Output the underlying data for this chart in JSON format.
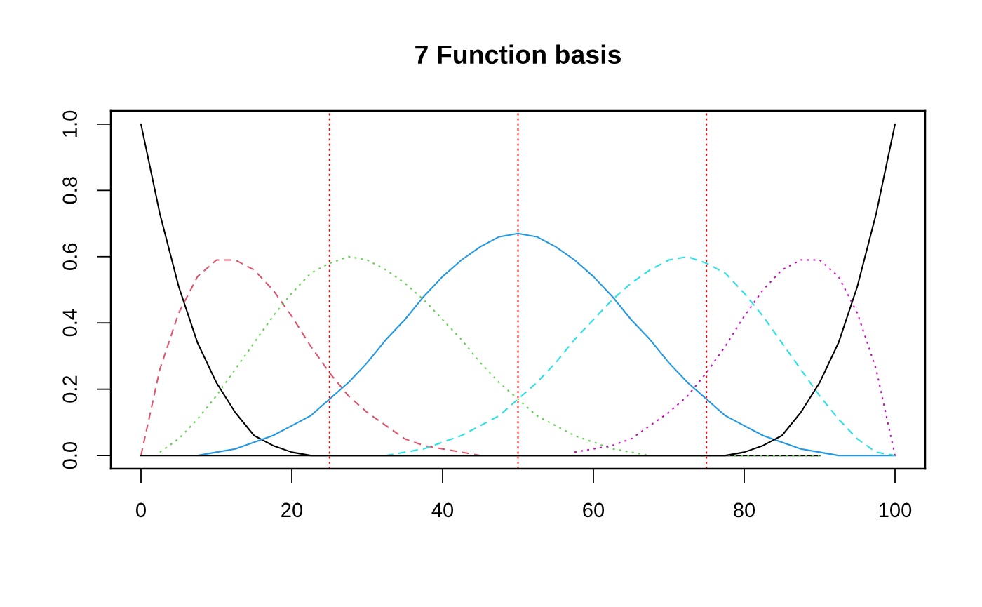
{
  "chart_data": {
    "type": "line",
    "title": "7 Function basis",
    "x": [
      0,
      2.5,
      5,
      7.5,
      10,
      12.5,
      15,
      17.5,
      20,
      22.5,
      25,
      27.5,
      30,
      32.5,
      35,
      37.5,
      40,
      42.5,
      45,
      47.5,
      50,
      52.5,
      55,
      57.5,
      60,
      62.5,
      65,
      67.5,
      70,
      72.5,
      75,
      77.5,
      80,
      82.5,
      85,
      87.5,
      90,
      92.5,
      95,
      97.5,
      100
    ],
    "series": [
      {
        "color": "#000000",
        "line_style": "solid",
        "values": [
          1,
          0.73,
          0.51,
          0.34,
          0.22,
          0.13,
          0.06,
          0.03,
          0.01,
          0,
          0,
          0,
          0,
          0,
          0,
          0,
          0,
          0,
          0,
          0,
          0,
          0,
          0,
          0,
          0,
          0,
          0,
          0,
          0,
          0,
          0,
          0,
          0,
          0,
          0,
          0,
          0,
          null,
          null,
          null,
          null
        ]
      },
      {
        "color": "#DF536B",
        "line_style": "dashed",
        "values": [
          0,
          0.26,
          0.43,
          0.54,
          0.59,
          0.59,
          0.56,
          0.5,
          0.42,
          0.33,
          0.25,
          0.18,
          0.13,
          0.09,
          0.05,
          0.03,
          0.02,
          0.01,
          0,
          null,
          null,
          null,
          null,
          null,
          null,
          null,
          null,
          null,
          null,
          null,
          null,
          null,
          null,
          null,
          null,
          null,
          null,
          null,
          null,
          null,
          null
        ]
      },
      {
        "color": "#61D04F",
        "line_style": "dotted",
        "values": [
          null,
          0.01,
          0.05,
          0.11,
          0.18,
          0.26,
          0.34,
          0.42,
          0.49,
          0.55,
          0.58,
          0.6,
          0.59,
          0.56,
          0.52,
          0.47,
          0.41,
          0.35,
          0.28,
          0.22,
          0.17,
          0.12,
          0.09,
          0.06,
          0.04,
          0.02,
          0.01,
          0,
          0,
          0,
          0,
          0,
          0,
          0,
          0,
          0,
          0,
          null,
          null,
          null,
          null
        ]
      },
      {
        "color": "#2297E6",
        "line_style": "solid",
        "values": [
          null,
          null,
          null,
          0,
          0.01,
          0.02,
          0.04,
          0.06,
          0.09,
          0.12,
          0.17,
          0.22,
          0.28,
          0.35,
          0.41,
          0.48,
          0.54,
          0.59,
          0.63,
          0.66,
          0.67,
          0.66,
          0.63,
          0.59,
          0.54,
          0.48,
          0.41,
          0.35,
          0.28,
          0.22,
          0.17,
          0.12,
          0.09,
          0.06,
          0.04,
          0.02,
          0.01,
          0,
          0,
          0,
          0
        ]
      },
      {
        "color": "#28E2E5",
        "line_style": "dashed",
        "values": [
          null,
          null,
          null,
          null,
          null,
          null,
          null,
          null,
          null,
          null,
          null,
          null,
          null,
          0,
          0.01,
          0.02,
          0.04,
          0.06,
          0.09,
          0.12,
          0.17,
          0.22,
          0.28,
          0.35,
          0.41,
          0.47,
          0.52,
          0.56,
          0.59,
          0.6,
          0.58,
          0.55,
          0.49,
          0.42,
          0.34,
          0.26,
          0.18,
          0.11,
          0.05,
          0.01,
          0
        ]
      },
      {
        "color": "#CD0BBC",
        "line_style": "dotted",
        "values": [
          null,
          null,
          null,
          null,
          null,
          null,
          null,
          null,
          null,
          null,
          null,
          null,
          null,
          null,
          null,
          null,
          null,
          null,
          null,
          null,
          null,
          null,
          null,
          0.01,
          0.02,
          0.03,
          0.05,
          0.09,
          0.13,
          0.18,
          0.25,
          0.33,
          0.42,
          0.5,
          0.56,
          0.59,
          0.59,
          0.54,
          0.43,
          0.26,
          0
        ]
      },
      {
        "color": "#000000",
        "line_style": "solid",
        "values": [
          0,
          0,
          0,
          0,
          0,
          0,
          0,
          0,
          0,
          0,
          0,
          0,
          0,
          0,
          0,
          0,
          0,
          0,
          0,
          0,
          0,
          0,
          0,
          0,
          0,
          0,
          0,
          0,
          0,
          0,
          0,
          0,
          0.01,
          0.03,
          0.06,
          0.13,
          0.22,
          0.34,
          0.51,
          0.73,
          1
        ]
      }
    ],
    "xlim": [
      -4,
      104
    ],
    "ylim": [
      -0.04,
      1.04
    ],
    "xticks": [
      0,
      20,
      40,
      60,
      80,
      100
    ],
    "yticks": [
      {
        "value": 0,
        "label": "0.0"
      },
      0.2,
      0.4,
      0.6,
      0.8,
      {
        "value": 1,
        "label": "1.0"
      }
    ],
    "ref_lines": [
      {
        "axis": "x",
        "value": 25,
        "color": "#FF0000",
        "line_style": "dotted"
      },
      {
        "axis": "x",
        "value": 50,
        "color": "#FF0000",
        "line_style": "dotted"
      },
      {
        "axis": "x",
        "value": 75,
        "color": "#FF0000",
        "line_style": "dotted"
      }
    ]
  }
}
